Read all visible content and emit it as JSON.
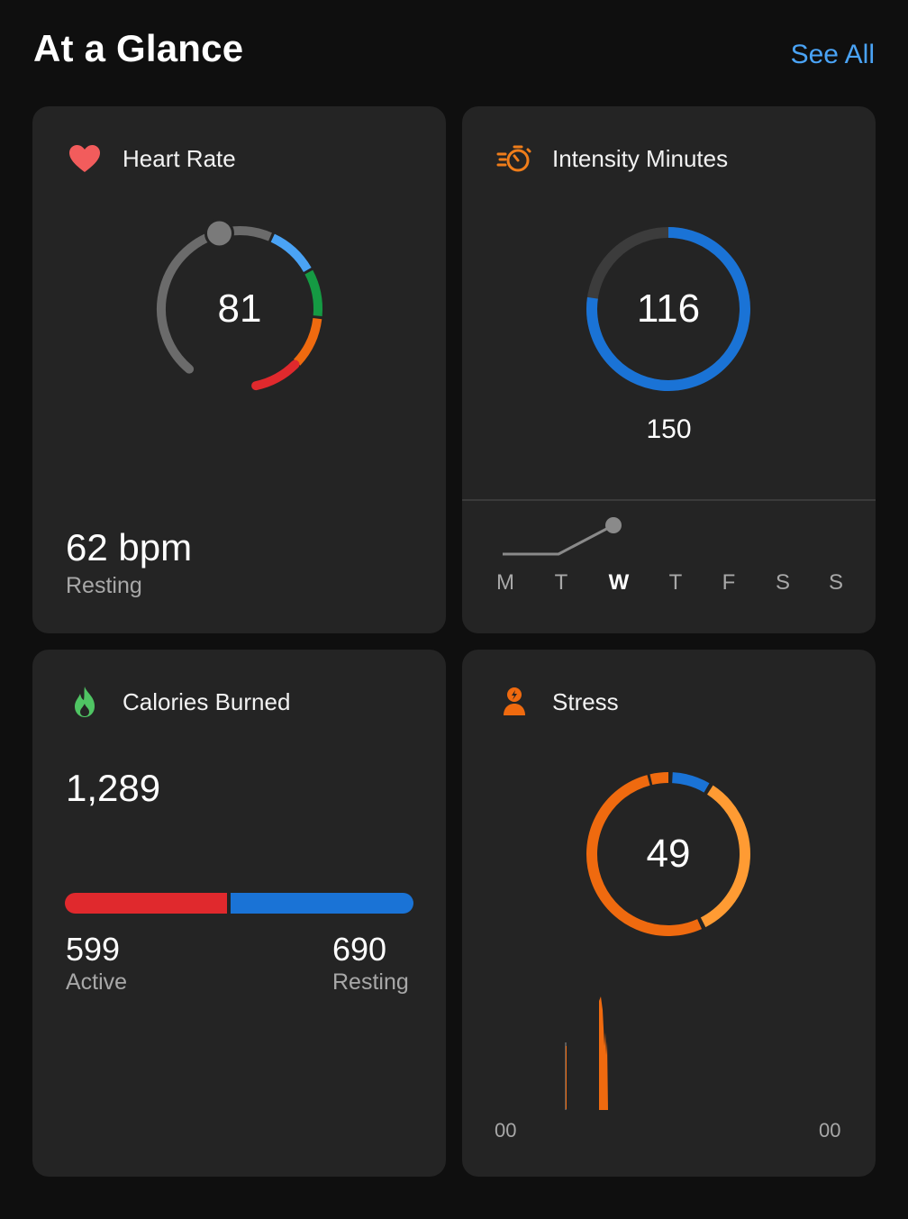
{
  "header": {
    "title": "At a Glance",
    "see_all_label": "See All"
  },
  "colors": {
    "background": "#0f0f0f",
    "card": "#242424",
    "accent_blue": "#4aa3f5",
    "intensity_blue": "#1a73d6",
    "active_red": "#e0292d",
    "stress_orange": "#ef6a0f",
    "stress_light_orange": "#ff9b33",
    "heart_icon": "#f25c5c",
    "calories_icon": "#4fc463"
  },
  "heart_rate": {
    "title": "Heart Rate",
    "icon": "heart-icon",
    "current_value": "81",
    "resting_value": "62 bpm",
    "resting_label": "Resting"
  },
  "intensity": {
    "title": "Intensity Minutes",
    "icon": "stopwatch-icon",
    "value": "116",
    "goal": "150",
    "progress_fraction": 0.773,
    "days": [
      {
        "label": "M",
        "current": false
      },
      {
        "label": "T",
        "current": false
      },
      {
        "label": "W",
        "current": true
      },
      {
        "label": "T",
        "current": false
      },
      {
        "label": "F",
        "current": false
      },
      {
        "label": "S",
        "current": false
      },
      {
        "label": "S",
        "current": false
      }
    ]
  },
  "calories": {
    "title": "Calories Burned",
    "icon": "flame-icon",
    "total": "1,289",
    "active_value": "599",
    "active_label": "Active",
    "resting_value": "690",
    "resting_label": "Resting",
    "active_fraction": 0.465
  },
  "stress": {
    "title": "Stress",
    "icon": "stress-person-icon",
    "value": "49",
    "axis_start": "00",
    "axis_end": "00"
  }
}
